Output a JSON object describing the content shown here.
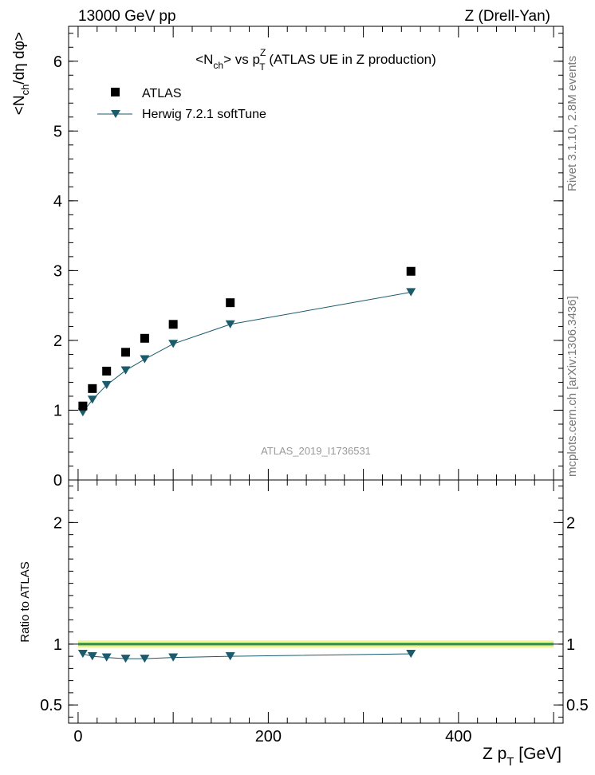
{
  "header": {
    "left": "13000 GeV pp",
    "right": "Z (Drell-Yan)"
  },
  "side_labels": {
    "rivet": "Rivet 3.1.10, 2.8M events",
    "mcplots": "mcplots.cern.ch [arXiv:1306.3436]"
  },
  "watermark": "ATLAS_2019_I1736531",
  "colors": {
    "data": "#000000",
    "mc": "#1b5b6b",
    "band_outer": "#f5f58a",
    "band_inner": "#7fe08a"
  },
  "chart_data": [
    {
      "type": "scatter",
      "title_parts": {
        "pre": "<N",
        "sub1": "ch",
        "mid": "> vs p",
        "sup": "Z",
        "sub2": "T",
        "post": " (ATLAS UE in Z production)"
      },
      "ylabel_parts": {
        "a": "<N",
        "b": "ch",
        "c": "/dη dφ>"
      },
      "ylim": [
        0,
        6.5
      ],
      "xlim": [
        -10,
        510
      ],
      "yticks": [
        "0",
        "1",
        "2",
        "3",
        "4",
        "5",
        "6"
      ],
      "legend_position": "top-left",
      "series": [
        {
          "name": "ATLAS",
          "marker": "square",
          "x": [
            5,
            15,
            30,
            50,
            70,
            100,
            160,
            350
          ],
          "y": [
            1.06,
            1.31,
            1.56,
            1.83,
            2.03,
            2.23,
            2.54,
            2.99
          ]
        },
        {
          "name": "Herwig 7.2.1 softTune",
          "marker": "triangle-down",
          "x": [
            5,
            15,
            30,
            50,
            70,
            100,
            160,
            350
          ],
          "y": [
            0.97,
            1.15,
            1.36,
            1.57,
            1.73,
            1.95,
            2.23,
            2.69
          ]
        }
      ]
    },
    {
      "type": "line",
      "ylabel": "Ratio to ATLAS",
      "xlabel_parts": {
        "a": "Z p",
        "b": "T",
        "c": " [GeV]"
      },
      "ylim": [
        0.35,
        2.35
      ],
      "xlim": [
        -10,
        510
      ],
      "yticks": [
        "0.5",
        "1",
        "2"
      ],
      "xticks": [
        "0",
        "200",
        "400"
      ],
      "reference": 1.0,
      "series": [
        {
          "name": "Herwig 7.2.1 softTune",
          "x": [
            5,
            15,
            30,
            50,
            70,
            100,
            160,
            350
          ],
          "y": [
            0.92,
            0.9,
            0.89,
            0.88,
            0.88,
            0.89,
            0.9,
            0.92
          ]
        }
      ]
    }
  ]
}
